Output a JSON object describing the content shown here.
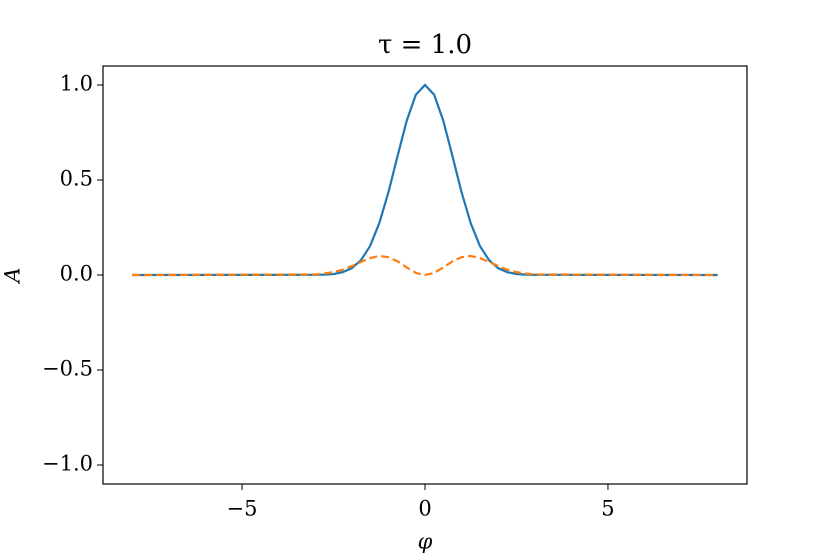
{
  "chart_data": {
    "type": "line",
    "title": "τ = 1.0",
    "x_label": "φ",
    "y_label": "A",
    "x": [
      -8,
      -3,
      -2.75,
      -2.5,
      -2.25,
      -2,
      -1.75,
      -1.5,
      -1.25,
      -1,
      -0.75,
      -0.5,
      -0.25,
      0,
      0.25,
      0.5,
      0.75,
      1,
      1.25,
      1.5,
      1.75,
      2,
      2.25,
      2.5,
      2.75,
      3,
      8
    ],
    "series": [
      {
        "color": "#1f77b4",
        "dashed": false,
        "values": [
          0,
          0.001,
          0.002,
          0.005,
          0.015,
          0.036,
          0.078,
          0.153,
          0.272,
          0.435,
          0.626,
          0.812,
          0.949,
          1,
          0.949,
          0.812,
          0.626,
          0.435,
          0.272,
          0.153,
          0.078,
          0.036,
          0.015,
          0.005,
          0.002,
          0.001,
          0
        ]
      },
      {
        "color": "#ff7f0e",
        "dashed": true,
        "values": [
          0,
          0.003,
          0.008,
          0.015,
          0.028,
          0.047,
          0.069,
          0.089,
          0.1,
          0.094,
          0.072,
          0.04,
          0.011,
          0,
          0.011,
          0.04,
          0.072,
          0.094,
          0.1,
          0.089,
          0.069,
          0.047,
          0.028,
          0.015,
          0.008,
          0.003,
          0
        ]
      }
    ],
    "xlim": [
      -8.8,
      8.8
    ],
    "ylim": [
      -1.1,
      1.1
    ],
    "xticks": [
      {
        "value": -5,
        "label": "−5"
      },
      0,
      5
    ],
    "yticks": [
      {
        "value": -1,
        "label": "−1.0"
      },
      {
        "value": -0.5,
        "label": "−0.5"
      },
      {
        "value": 0,
        "label": "0.0"
      },
      0.5,
      {
        "value": 1,
        "label": "1.0"
      }
    ]
  }
}
